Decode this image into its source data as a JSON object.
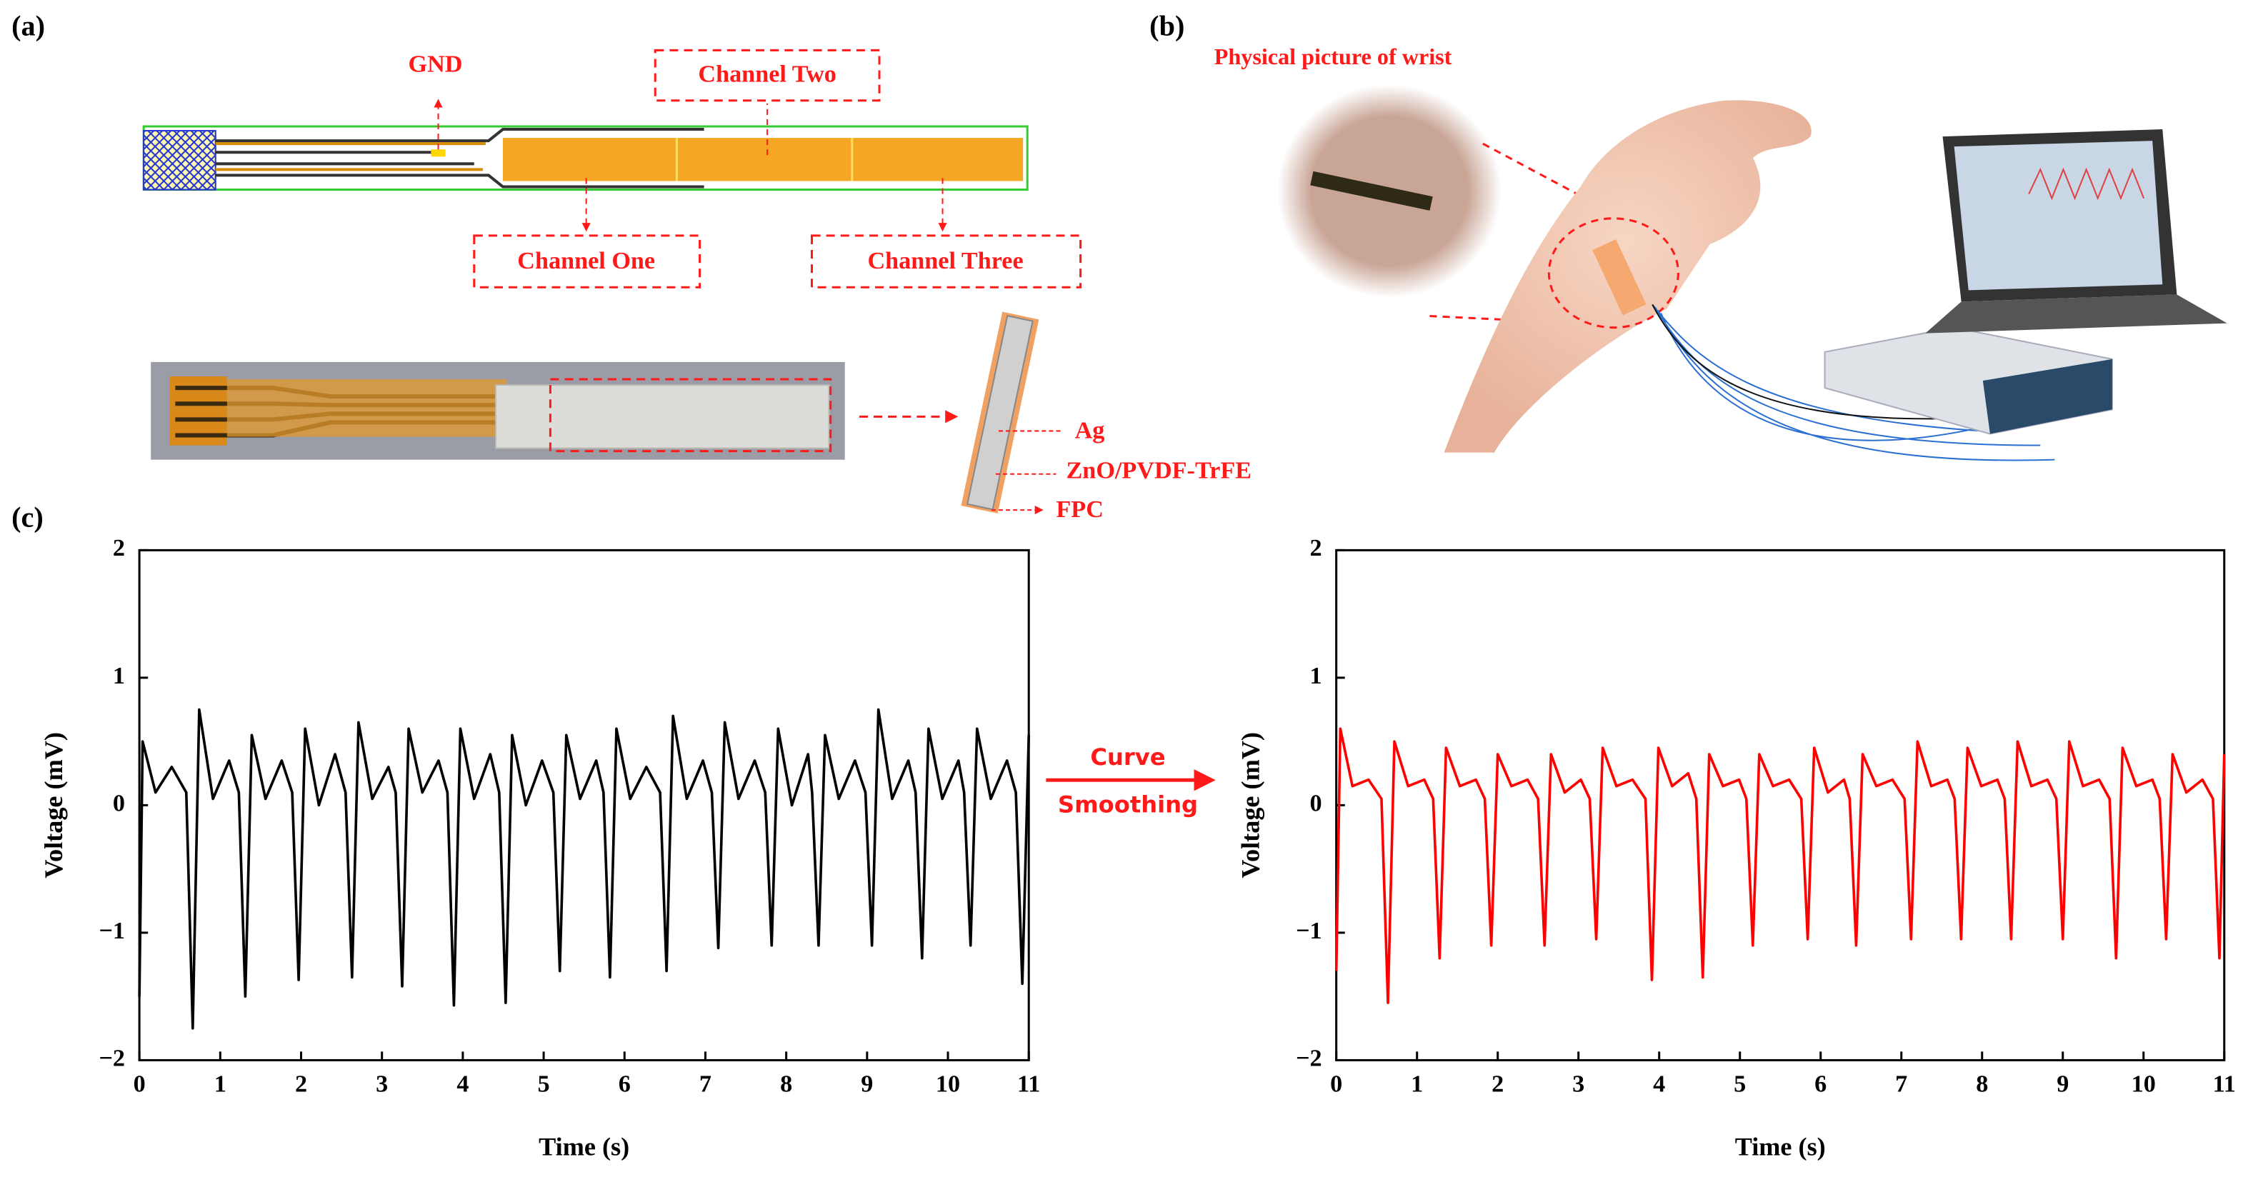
{
  "figure": {
    "panels": [
      "(a)",
      "(b)",
      "(c)"
    ],
    "diagram": {
      "gnd": "GND",
      "channel_two": "Channel Two",
      "channel_one": "Channel One",
      "channel_three": "Channel Three",
      "layers": [
        "Ag",
        "ZnO/PVDF-TrFE",
        "FPC"
      ],
      "wrist_caption": "Physical picture of wrist",
      "arrow_text": [
        "Curve",
        "Smoothing"
      ]
    }
  },
  "chart_data": [
    {
      "type": "line",
      "xlabel": "Time (s)",
      "ylabel": "Voltage (mV)",
      "xlim": [
        0,
        11
      ],
      "ylim": [
        -2,
        2
      ],
      "xticks": [
        0,
        1,
        2,
        3,
        4,
        5,
        6,
        7,
        8,
        9,
        10,
        11
      ],
      "yticks": [
        {
          "value": -2,
          "label": "−2"
        },
        {
          "value": -1,
          "label": "−1"
        },
        0,
        1,
        2
      ],
      "x": [
        0,
        0.04,
        0.2,
        0.4,
        0.58,
        0.66,
        0.74,
        0.91,
        1.11,
        1.23,
        1.31,
        1.39,
        1.56,
        1.76,
        1.89,
        1.97,
        2.05,
        2.22,
        2.42,
        2.55,
        2.63,
        2.71,
        2.88,
        3.08,
        3.17,
        3.25,
        3.33,
        3.5,
        3.7,
        3.81,
        3.89,
        3.97,
        4.14,
        4.34,
        4.45,
        4.53,
        4.61,
        4.78,
        4.98,
        5.12,
        5.2,
        5.28,
        5.45,
        5.65,
        5.74,
        5.82,
        5.9,
        6.07,
        6.27,
        6.44,
        6.52,
        6.6,
        6.77,
        6.97,
        7.08,
        7.16,
        7.24,
        7.41,
        7.61,
        7.74,
        7.82,
        7.9,
        8.07,
        8.27,
        8.32,
        8.4,
        8.48,
        8.65,
        8.85,
        8.98,
        9.06,
        9.14,
        9.31,
        9.51,
        9.6,
        9.68,
        9.76,
        9.93,
        10.13,
        10.2,
        10.28,
        10.36,
        10.53,
        10.73,
        10.84,
        10.92,
        11
      ],
      "series": [
        {
          "color": "#000000",
          "values": [
            -1.5,
            0.5,
            0.1,
            0.3,
            0.1,
            -1.75,
            0.75,
            0.05,
            0.35,
            0.1,
            -1.5,
            0.55,
            0.05,
            0.35,
            0.1,
            -1.37,
            0.6,
            0.0,
            0.4,
            0.1,
            -1.35,
            0.65,
            0.05,
            0.3,
            0.1,
            -1.42,
            0.6,
            0.1,
            0.35,
            0.1,
            -1.57,
            0.6,
            0.05,
            0.4,
            0.1,
            -1.55,
            0.55,
            0.0,
            0.35,
            0.1,
            -1.3,
            0.55,
            0.05,
            0.35,
            0.1,
            -1.35,
            0.6,
            0.05,
            0.3,
            0.1,
            -1.3,
            0.7,
            0.05,
            0.35,
            0.1,
            -1.12,
            0.65,
            0.05,
            0.35,
            0.1,
            -1.1,
            0.6,
            0.0,
            0.4,
            0.1,
            -1.1,
            0.55,
            0.05,
            0.35,
            0.1,
            -1.1,
            0.75,
            0.05,
            0.35,
            0.1,
            -1.2,
            0.6,
            0.05,
            0.35,
            0.1,
            -1.1,
            0.6,
            0.05,
            0.35,
            0.1,
            -1.4,
            0.55
          ]
        }
      ]
    },
    {
      "type": "line",
      "xlabel": "Time (s)",
      "ylabel": "Voltage (mV)",
      "xlim": [
        0,
        11
      ],
      "ylim": [
        -2,
        2
      ],
      "xticks": [
        0,
        1,
        2,
        3,
        4,
        5,
        6,
        7,
        8,
        9,
        10,
        11
      ],
      "yticks": [
        {
          "value": -2,
          "label": "−2"
        },
        {
          "value": -1,
          "label": "−1"
        },
        0,
        1,
        2
      ],
      "x": [
        0,
        0.05,
        0.2,
        0.4,
        0.56,
        0.64,
        0.72,
        0.89,
        1.09,
        1.2,
        1.28,
        1.36,
        1.53,
        1.73,
        1.84,
        1.92,
        2,
        2.17,
        2.37,
        2.5,
        2.58,
        2.66,
        2.83,
        3.03,
        3.14,
        3.22,
        3.3,
        3.47,
        3.67,
        3.83,
        3.91,
        3.99,
        4.16,
        4.36,
        4.46,
        4.54,
        4.62,
        4.79,
        4.99,
        5.08,
        5.16,
        5.24,
        5.41,
        5.61,
        5.76,
        5.84,
        5.92,
        6.09,
        6.29,
        6.36,
        6.44,
        6.52,
        6.69,
        6.89,
        7.04,
        7.12,
        7.2,
        7.37,
        7.57,
        7.66,
        7.74,
        7.82,
        7.99,
        8.19,
        8.28,
        8.36,
        8.44,
        8.61,
        8.81,
        8.92,
        9,
        9.08,
        9.25,
        9.45,
        9.58,
        9.66,
        9.74,
        9.91,
        10.11,
        10.2,
        10.28,
        10.36,
        10.53,
        10.73,
        10.86,
        10.94,
        11
      ],
      "series": [
        {
          "color": "#ff0000",
          "values": [
            -1.3,
            0.6,
            0.15,
            0.2,
            0.05,
            -1.55,
            0.5,
            0.15,
            0.2,
            0.05,
            -1.2,
            0.45,
            0.15,
            0.2,
            0.05,
            -1.1,
            0.4,
            0.15,
            0.2,
            0.05,
            -1.1,
            0.4,
            0.1,
            0.2,
            0.05,
            -1.05,
            0.45,
            0.15,
            0.2,
            0.05,
            -1.37,
            0.45,
            0.15,
            0.25,
            0.05,
            -1.35,
            0.4,
            0.15,
            0.2,
            0.05,
            -1.1,
            0.4,
            0.15,
            0.2,
            0.05,
            -1.05,
            0.45,
            0.1,
            0.2,
            0.05,
            -1.1,
            0.4,
            0.15,
            0.2,
            0.05,
            -1.05,
            0.5,
            0.15,
            0.2,
            0.05,
            -1.05,
            0.45,
            0.15,
            0.2,
            0.05,
            -1.05,
            0.5,
            0.15,
            0.2,
            0.05,
            -1.05,
            0.5,
            0.15,
            0.2,
            0.05,
            -1.2,
            0.45,
            0.15,
            0.2,
            0.05,
            -1.05,
            0.4,
            0.1,
            0.2,
            0.05,
            -1.2,
            0.4
          ]
        }
      ]
    }
  ]
}
